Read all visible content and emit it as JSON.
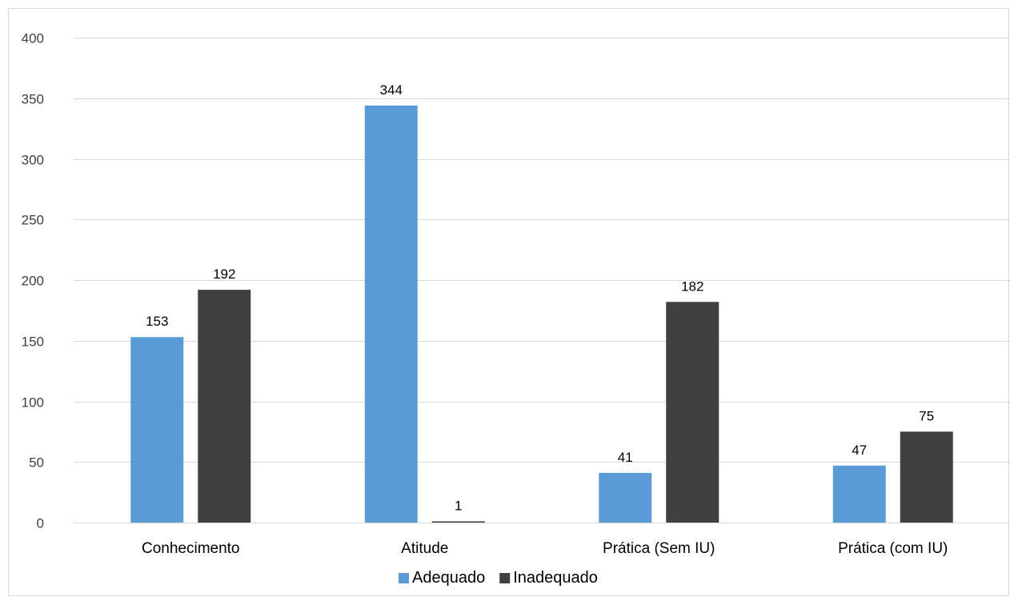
{
  "chart_data": {
    "type": "bar",
    "title": "",
    "xlabel": "",
    "ylabel": "",
    "categories": [
      "Conhecimento",
      "Atitude",
      "Prática (Sem IU)",
      "Prática (com IU)"
    ],
    "series": [
      {
        "name": "Adequado",
        "color": "#5b9bd5",
        "values": [
          153,
          344,
          41,
          47
        ]
      },
      {
        "name": "Inadequado",
        "color": "#404040",
        "values": [
          192,
          1,
          182,
          75
        ]
      }
    ],
    "ylim": [
      0,
      400
    ],
    "yticks": [
      "0",
      "50",
      "100",
      "150",
      "200",
      "250",
      "300",
      "350",
      "400"
    ],
    "grid": true,
    "gridline_color": "#d9d9d9",
    "legend_position": "bottom",
    "data_labels": true
  }
}
